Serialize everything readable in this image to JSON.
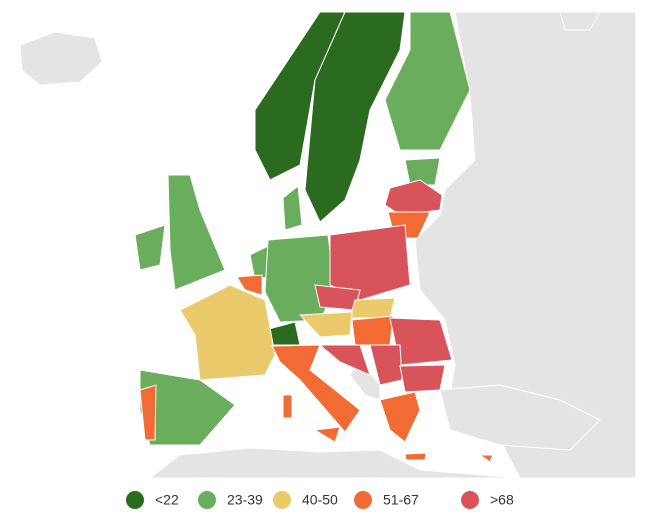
{
  "legend": {
    "items": [
      {
        "label": "<22",
        "color": "#2b6b1f"
      },
      {
        "label": "23-39",
        "color": "#6aae5d"
      },
      {
        "label": "40-50",
        "color": "#ebca6b"
      },
      {
        "label": "51-67",
        "color": "#f26b34"
      },
      {
        "label": ">68",
        "color": "#d9535b"
      }
    ]
  }
}
